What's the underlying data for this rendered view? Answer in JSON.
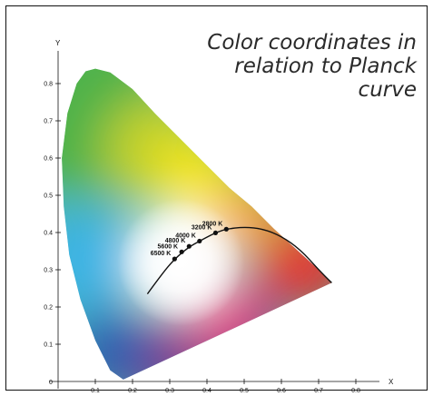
{
  "chart_data": {
    "type": "scatter",
    "title_lines": [
      "Color coordinates in",
      "relation to Planck curve"
    ],
    "xlabel": "X",
    "ylabel": "Y",
    "xlim": [
      0,
      0.85
    ],
    "ylim": [
      0,
      0.86
    ],
    "x_ticks": [
      "0.1",
      "0.2",
      "0.3",
      "0.4",
      "0.5",
      "0.6",
      "0.7",
      "0.8"
    ],
    "y_ticks": [
      "0.1",
      "0.2",
      "0.3",
      "0.4",
      "0.5",
      "0.6",
      "0.7",
      "0.8"
    ],
    "origin_label": "0",
    "grid": false,
    "points": [
      {
        "label": "2800 K",
        "x": 0.452,
        "y": 0.409
      },
      {
        "label": "3200 K",
        "x": 0.423,
        "y": 0.399
      },
      {
        "label": "4000 K",
        "x": 0.38,
        "y": 0.377
      },
      {
        "label": "4800 K",
        "x": 0.352,
        "y": 0.363
      },
      {
        "label": "5600 K",
        "x": 0.332,
        "y": 0.348
      },
      {
        "label": "6500 K",
        "x": 0.313,
        "y": 0.329
      }
    ],
    "planck_curve": [
      [
        0.24,
        0.235
      ],
      [
        0.28,
        0.29
      ],
      [
        0.313,
        0.329
      ],
      [
        0.35,
        0.36
      ],
      [
        0.38,
        0.377
      ],
      [
        0.42,
        0.398
      ],
      [
        0.45,
        0.409
      ],
      [
        0.5,
        0.415
      ],
      [
        0.55,
        0.41
      ],
      [
        0.6,
        0.39
      ],
      [
        0.65,
        0.355
      ],
      [
        0.7,
        0.3
      ],
      [
        0.735,
        0.265
      ]
    ],
    "locus": [
      [
        0.175,
        0.005
      ],
      [
        0.14,
        0.03
      ],
      [
        0.1,
        0.11
      ],
      [
        0.06,
        0.22
      ],
      [
        0.03,
        0.34
      ],
      [
        0.015,
        0.47
      ],
      [
        0.01,
        0.6
      ],
      [
        0.025,
        0.72
      ],
      [
        0.05,
        0.8
      ],
      [
        0.074,
        0.833
      ],
      [
        0.1,
        0.84
      ],
      [
        0.14,
        0.83
      ],
      [
        0.2,
        0.785
      ],
      [
        0.26,
        0.72
      ],
      [
        0.33,
        0.65
      ],
      [
        0.4,
        0.58
      ],
      [
        0.46,
        0.52
      ],
      [
        0.52,
        0.47
      ],
      [
        0.58,
        0.41
      ],
      [
        0.64,
        0.355
      ],
      [
        0.7,
        0.3
      ],
      [
        0.735,
        0.265
      ]
    ],
    "colors": {
      "green": "#4fb24a",
      "yellowgreen": "#c4d22a",
      "yellow": "#f6e61f",
      "orange": "#f4a12e",
      "red": "#e7312e",
      "magenta": "#d8317f",
      "purple": "#7d3a8f",
      "blue": "#2f5db0",
      "cyan": "#3db4e4",
      "teal": "#53b9a7",
      "white": "#ffffff"
    }
  }
}
